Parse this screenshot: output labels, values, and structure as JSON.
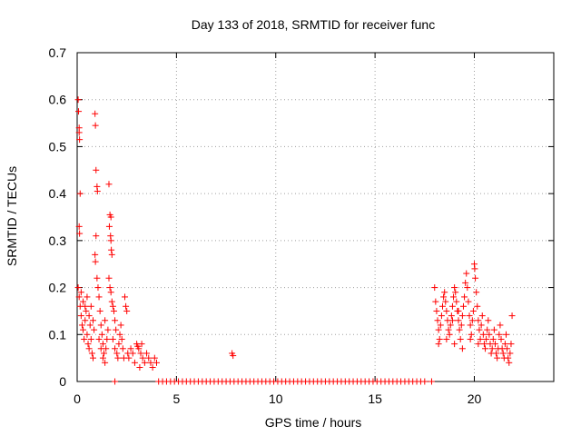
{
  "chart_data": {
    "type": "scatter",
    "title": "Day 133 of 2018, SRMTID for receiver func",
    "xlabel": "GPS time / hours",
    "ylabel": "SRMTID / TECUs",
    "xlim": [
      0,
      24
    ],
    "ylim": [
      0,
      0.7
    ],
    "xticks": [
      0,
      5,
      10,
      15,
      20
    ],
    "yticks": [
      0,
      0.1,
      0.2,
      0.3,
      0.4,
      0.5,
      0.6,
      0.7
    ],
    "xtick_labels": [
      "0",
      "5",
      "10",
      "15",
      "20"
    ],
    "ytick_labels": [
      "0",
      "0.1",
      "0.2",
      "0.3",
      "0.4",
      "0.5",
      "0.6",
      "0.7"
    ],
    "grid": true,
    "marker": "+",
    "series": [
      {
        "name": "SRMTID",
        "color": "#ff0000",
        "points": [
          [
            0.05,
            0.6
          ],
          [
            0.07,
            0.575
          ],
          [
            0.1,
            0.53
          ],
          [
            0.12,
            0.515
          ],
          [
            0.1,
            0.54
          ],
          [
            0.15,
            0.4
          ],
          [
            0.1,
            0.33
          ],
          [
            0.12,
            0.315
          ],
          [
            0.05,
            0.2
          ],
          [
            0.1,
            0.18
          ],
          [
            0.15,
            0.16
          ],
          [
            0.2,
            0.14
          ],
          [
            0.25,
            0.12
          ],
          [
            0.3,
            0.11
          ],
          [
            0.35,
            0.09
          ],
          [
            0.4,
            0.13
          ],
          [
            0.45,
            0.15
          ],
          [
            0.5,
            0.1
          ],
          [
            0.55,
            0.08
          ],
          [
            0.6,
            0.07
          ],
          [
            0.65,
            0.12
          ],
          [
            0.7,
            0.09
          ],
          [
            0.75,
            0.06
          ],
          [
            0.8,
            0.05
          ],
          [
            0.2,
            0.19
          ],
          [
            0.3,
            0.17
          ],
          [
            0.4,
            0.16
          ],
          [
            0.5,
            0.18
          ],
          [
            0.6,
            0.14
          ],
          [
            0.7,
            0.16
          ],
          [
            0.8,
            0.13
          ],
          [
            0.85,
            0.11
          ],
          [
            0.9,
            0.57
          ],
          [
            0.92,
            0.545
          ],
          [
            0.95,
            0.45
          ],
          [
            1.0,
            0.415
          ],
          [
            1.02,
            0.405
          ],
          [
            0.95,
            0.31
          ],
          [
            0.9,
            0.27
          ],
          [
            0.92,
            0.255
          ],
          [
            1.0,
            0.22
          ],
          [
            1.05,
            0.2
          ],
          [
            1.1,
            0.18
          ],
          [
            1.15,
            0.15
          ],
          [
            1.2,
            0.12
          ],
          [
            1.25,
            0.1
          ],
          [
            1.3,
            0.08
          ],
          [
            1.35,
            0.06
          ],
          [
            1.1,
            0.09
          ],
          [
            1.2,
            0.07
          ],
          [
            1.3,
            0.05
          ],
          [
            1.4,
            0.04
          ],
          [
            1.45,
            0.07
          ],
          [
            1.5,
            0.09
          ],
          [
            1.55,
            0.11
          ],
          [
            1.4,
            0.13
          ],
          [
            1.6,
            0.42
          ],
          [
            1.65,
            0.355
          ],
          [
            1.7,
            0.35
          ],
          [
            1.62,
            0.33
          ],
          [
            1.68,
            0.31
          ],
          [
            1.7,
            0.3
          ],
          [
            1.72,
            0.28
          ],
          [
            1.75,
            0.27
          ],
          [
            1.6,
            0.22
          ],
          [
            1.65,
            0.2
          ],
          [
            1.7,
            0.19
          ],
          [
            1.75,
            0.17
          ],
          [
            1.8,
            0.16
          ],
          [
            1.85,
            0.15
          ],
          [
            1.9,
            0.13
          ],
          [
            1.95,
            0.11
          ],
          [
            1.8,
            0.09
          ],
          [
            1.9,
            0.07
          ],
          [
            2.0,
            0.06
          ],
          [
            2.05,
            0.05
          ],
          [
            2.1,
            0.08
          ],
          [
            2.15,
            0.1
          ],
          [
            2.2,
            0.12
          ],
          [
            2.25,
            0.09
          ],
          [
            2.3,
            0.07
          ],
          [
            2.35,
            0.05
          ],
          [
            2.4,
            0.18
          ],
          [
            2.45,
            0.16
          ],
          [
            2.5,
            0.15
          ],
          [
            2.55,
            0.06
          ],
          [
            2.6,
            0.05
          ],
          [
            2.7,
            0.07
          ],
          [
            2.8,
            0.06
          ],
          [
            2.9,
            0.04
          ],
          [
            3.0,
            0.08
          ],
          [
            3.05,
            0.075
          ],
          [
            3.1,
            0.07
          ],
          [
            3.2,
            0.06
          ],
          [
            3.3,
            0.05
          ],
          [
            3.4,
            0.04
          ],
          [
            3.5,
            0.06
          ],
          [
            3.6,
            0.05
          ],
          [
            3.7,
            0.04
          ],
          [
            3.8,
            0.03
          ],
          [
            3.9,
            0.05
          ],
          [
            4.0,
            0.04
          ],
          [
            3.15,
            0.03
          ],
          [
            3.25,
            0.08
          ],
          [
            7.8,
            0.06
          ],
          [
            7.85,
            0.055
          ],
          [
            1.9,
            0.0
          ],
          [
            4.1,
            0.0
          ],
          [
            4.3,
            0.0
          ],
          [
            4.5,
            0.0
          ],
          [
            4.7,
            0.0
          ],
          [
            4.9,
            0.0
          ],
          [
            5.1,
            0.0
          ],
          [
            5.3,
            0.0
          ],
          [
            5.5,
            0.0
          ],
          [
            5.7,
            0.0
          ],
          [
            5.9,
            0.0
          ],
          [
            6.1,
            0.0
          ],
          [
            6.3,
            0.0
          ],
          [
            6.5,
            0.0
          ],
          [
            6.7,
            0.0
          ],
          [
            6.9,
            0.0
          ],
          [
            7.1,
            0.0
          ],
          [
            7.3,
            0.0
          ],
          [
            7.5,
            0.0
          ],
          [
            7.7,
            0.0
          ],
          [
            7.9,
            0.0
          ],
          [
            8.1,
            0.0
          ],
          [
            8.3,
            0.0
          ],
          [
            8.5,
            0.0
          ],
          [
            8.7,
            0.0
          ],
          [
            8.9,
            0.0
          ],
          [
            9.1,
            0.0
          ],
          [
            9.3,
            0.0
          ],
          [
            9.5,
            0.0
          ],
          [
            9.7,
            0.0
          ],
          [
            9.9,
            0.0
          ],
          [
            10.1,
            0.0
          ],
          [
            10.3,
            0.0
          ],
          [
            10.5,
            0.0
          ],
          [
            10.7,
            0.0
          ],
          [
            10.9,
            0.0
          ],
          [
            11.1,
            0.0
          ],
          [
            11.3,
            0.0
          ],
          [
            11.5,
            0.0
          ],
          [
            11.7,
            0.0
          ],
          [
            11.9,
            0.0
          ],
          [
            12.1,
            0.0
          ],
          [
            12.3,
            0.0
          ],
          [
            12.5,
            0.0
          ],
          [
            12.7,
            0.0
          ],
          [
            12.9,
            0.0
          ],
          [
            13.1,
            0.0
          ],
          [
            13.3,
            0.0
          ],
          [
            13.5,
            0.0
          ],
          [
            13.7,
            0.0
          ],
          [
            13.9,
            0.0
          ],
          [
            14.1,
            0.0
          ],
          [
            14.3,
            0.0
          ],
          [
            14.5,
            0.0
          ],
          [
            14.7,
            0.0
          ],
          [
            14.9,
            0.0
          ],
          [
            15.1,
            0.0
          ],
          [
            15.3,
            0.0
          ],
          [
            15.5,
            0.0
          ],
          [
            15.7,
            0.0
          ],
          [
            15.9,
            0.0
          ],
          [
            16.1,
            0.0
          ],
          [
            16.3,
            0.0
          ],
          [
            16.5,
            0.0
          ],
          [
            16.7,
            0.0
          ],
          [
            16.9,
            0.0
          ],
          [
            17.1,
            0.0
          ],
          [
            17.3,
            0.0
          ],
          [
            17.5,
            0.0
          ],
          [
            17.85,
            0.0
          ],
          [
            18.0,
            0.2
          ],
          [
            18.05,
            0.17
          ],
          [
            18.1,
            0.15
          ],
          [
            18.15,
            0.13
          ],
          [
            18.2,
            0.11
          ],
          [
            18.25,
            0.09
          ],
          [
            18.3,
            0.12
          ],
          [
            18.35,
            0.14
          ],
          [
            18.4,
            0.16
          ],
          [
            18.45,
            0.18
          ],
          [
            18.5,
            0.19
          ],
          [
            18.55,
            0.17
          ],
          [
            18.6,
            0.15
          ],
          [
            18.65,
            0.13
          ],
          [
            18.7,
            0.11
          ],
          [
            18.75,
            0.1
          ],
          [
            18.8,
            0.12
          ],
          [
            18.85,
            0.14
          ],
          [
            18.9,
            0.16
          ],
          [
            18.95,
            0.18
          ],
          [
            19.0,
            0.2
          ],
          [
            19.05,
            0.19
          ],
          [
            19.1,
            0.17
          ],
          [
            19.15,
            0.15
          ],
          [
            19.2,
            0.13
          ],
          [
            19.25,
            0.11
          ],
          [
            19.3,
            0.09
          ],
          [
            19.35,
            0.12
          ],
          [
            19.4,
            0.14
          ],
          [
            19.45,
            0.16
          ],
          [
            19.5,
            0.18
          ],
          [
            19.55,
            0.21
          ],
          [
            19.6,
            0.23
          ],
          [
            19.65,
            0.2
          ],
          [
            19.7,
            0.17
          ],
          [
            19.75,
            0.14
          ],
          [
            19.8,
            0.12
          ],
          [
            19.85,
            0.1
          ],
          [
            19.9,
            0.13
          ],
          [
            19.95,
            0.15
          ],
          [
            20.0,
            0.25
          ],
          [
            20.02,
            0.24
          ],
          [
            20.05,
            0.22
          ],
          [
            20.1,
            0.19
          ],
          [
            20.15,
            0.16
          ],
          [
            20.2,
            0.13
          ],
          [
            20.25,
            0.11
          ],
          [
            20.3,
            0.09
          ],
          [
            20.35,
            0.12
          ],
          [
            20.4,
            0.14
          ],
          [
            20.45,
            0.1
          ],
          [
            20.5,
            0.08
          ],
          [
            20.55,
            0.07
          ],
          [
            20.6,
            0.09
          ],
          [
            20.65,
            0.11
          ],
          [
            20.7,
            0.13
          ],
          [
            20.75,
            0.1
          ],
          [
            20.8,
            0.08
          ],
          [
            20.85,
            0.06
          ],
          [
            20.9,
            0.07
          ],
          [
            20.95,
            0.09
          ],
          [
            21.0,
            0.11
          ],
          [
            21.05,
            0.08
          ],
          [
            21.1,
            0.06
          ],
          [
            21.15,
            0.05
          ],
          [
            21.2,
            0.07
          ],
          [
            21.25,
            0.1
          ],
          [
            21.3,
            0.12
          ],
          [
            21.35,
            0.09
          ],
          [
            21.4,
            0.07
          ],
          [
            21.45,
            0.06
          ],
          [
            21.5,
            0.05
          ],
          [
            21.55,
            0.08
          ],
          [
            21.6,
            0.1
          ],
          [
            21.65,
            0.07
          ],
          [
            21.7,
            0.05
          ],
          [
            21.75,
            0.04
          ],
          [
            21.8,
            0.06
          ],
          [
            21.85,
            0.08
          ],
          [
            21.9,
            0.14
          ],
          [
            18.2,
            0.08
          ],
          [
            18.6,
            0.09
          ],
          [
            19.0,
            0.08
          ],
          [
            19.4,
            0.07
          ],
          [
            19.8,
            0.09
          ],
          [
            20.2,
            0.08
          ],
          [
            18.9,
            0.13
          ],
          [
            19.2,
            0.15
          ]
        ]
      }
    ]
  }
}
